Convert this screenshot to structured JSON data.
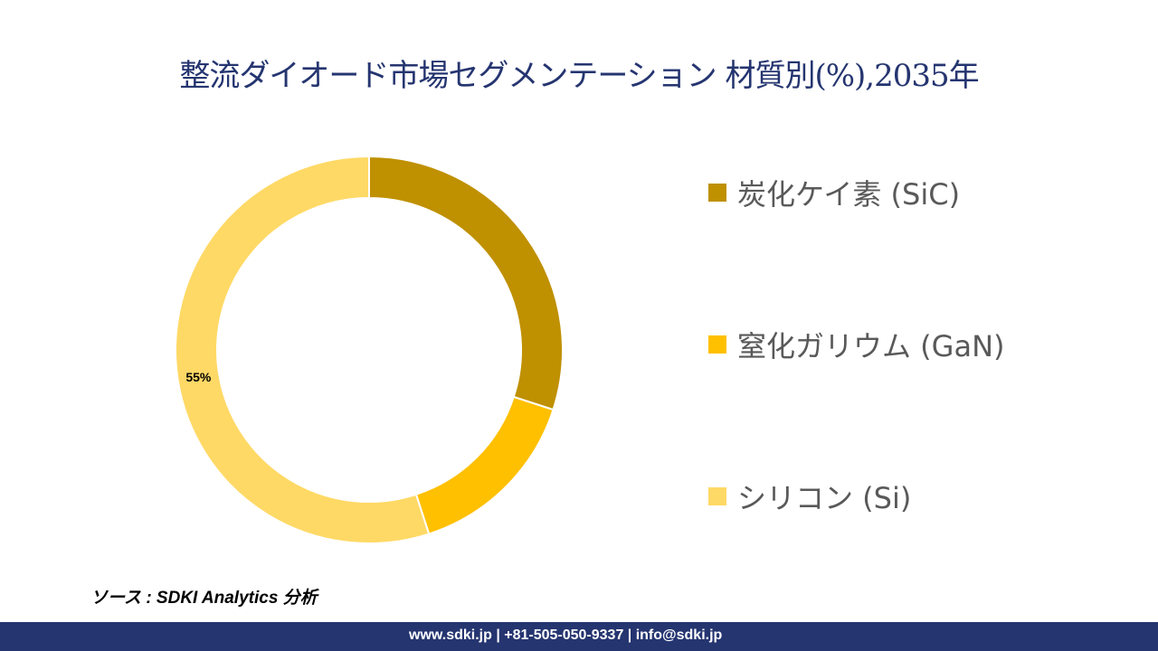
{
  "title": "整流ダイオード市場セグメンテーション 材質別(%),2035年",
  "chart_data": {
    "type": "pie",
    "variant": "donut",
    "title": "整流ダイオード市場セグメンテーション 材質別(%),2035年",
    "categories": [
      "炭化ケイ素 (SiC)",
      "窒化ガリウム (GaN)",
      "シリコン (Si)"
    ],
    "values": [
      30,
      15,
      55
    ],
    "colors": [
      "#BF9000",
      "#FFC000",
      "#FFD966"
    ],
    "data_labels": [
      "",
      "",
      "55%"
    ],
    "legend_position": "right"
  },
  "source": "ソース : SDKI Analytics 分析",
  "footer": "www.sdki.jp | +81-505-050-9337 | info@sdki.jp"
}
